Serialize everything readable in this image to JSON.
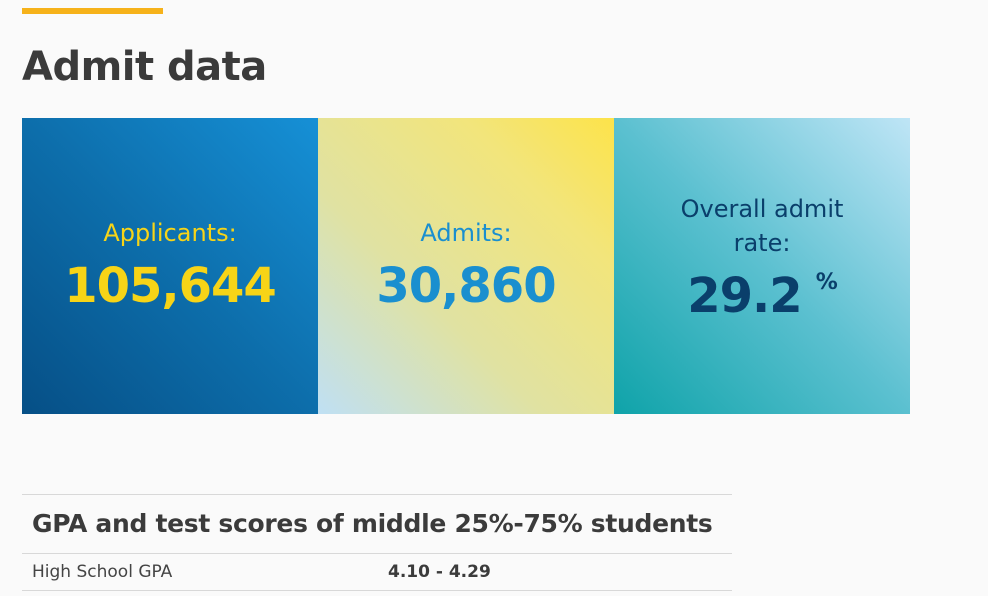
{
  "page": {
    "title": "Admit data"
  },
  "stats": {
    "applicants": {
      "label": "Applicants:",
      "value": "105,644"
    },
    "admits": {
      "label": "Admits:",
      "value": "30,860"
    },
    "admit_rate": {
      "label": "Overall admit rate:",
      "value": "29.2",
      "unit": "%"
    }
  },
  "scores": {
    "title": "GPA and test scores of middle 25%-75% students",
    "rows": [
      {
        "label": "High School GPA",
        "value": "4.10 - 4.29"
      }
    ]
  },
  "colors": {
    "accent": "#f6b21a",
    "applicants_text": "#f7d417",
    "admits_text": "#1a8fcf",
    "rate_text": "#0a3f6b"
  }
}
